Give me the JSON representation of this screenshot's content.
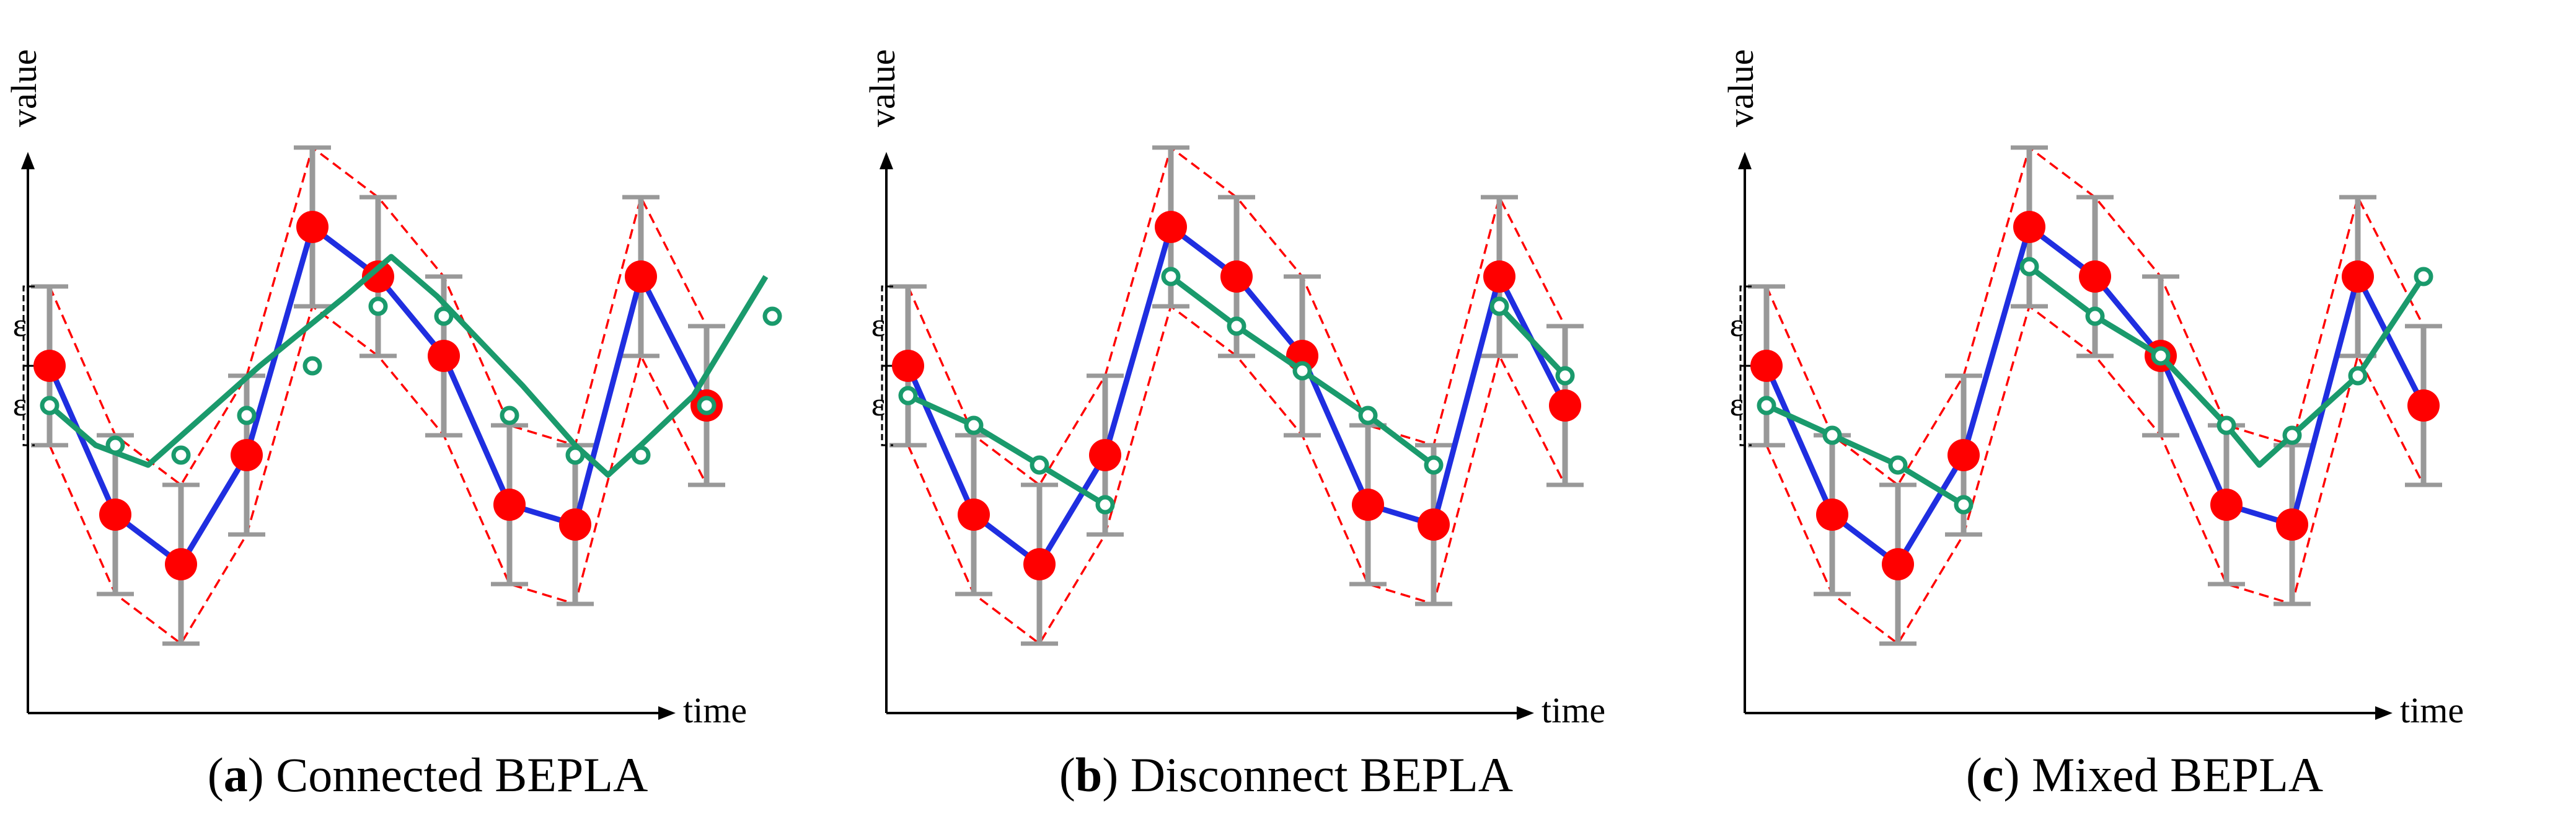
{
  "chart_data": [
    {
      "type": "line",
      "label": "a",
      "title": "Connected BEPLA",
      "xlabel": "time",
      "ylabel": "value",
      "epsilon_label": "ε",
      "epsilon": 1.6,
      "ylim": [
        0,
        13
      ],
      "x": [
        1,
        2,
        3,
        4,
        5,
        6,
        7,
        8,
        9,
        10,
        11
      ],
      "original": [
        7.0,
        4.0,
        3.0,
        5.2,
        9.8,
        8.8,
        7.2,
        4.2,
        3.8,
        8.8,
        6.2
      ],
      "approximation": {
        "segments": [
          [
            [
              1,
              6.2
            ],
            [
              1.7,
              5.4
            ],
            [
              2.5,
              5.0
            ],
            [
              4.2,
              7.0
            ],
            [
              5.5,
              8.4
            ],
            [
              6.2,
              9.2
            ],
            [
              6.9,
              8.4
            ],
            [
              8.2,
              6.6
            ],
            [
              9.0,
              5.4
            ],
            [
              9.5,
              4.8
            ],
            [
              10.0,
              5.4
            ],
            [
              10.8,
              6.4
            ],
            [
              11.9,
              8.8
            ]
          ]
        ],
        "vertices": [
          [
            1,
            6.2
          ],
          [
            2,
            5.4
          ],
          [
            3,
            5.2
          ],
          [
            4,
            6.0
          ],
          [
            5,
            7.0
          ],
          [
            6,
            8.2
          ],
          [
            7,
            8.0
          ],
          [
            8,
            6.0
          ],
          [
            9,
            5.2
          ],
          [
            10,
            5.2
          ],
          [
            11,
            6.2
          ],
          [
            12,
            8.0
          ]
        ]
      }
    },
    {
      "type": "line",
      "label": "b",
      "title": "Disconnect BEPLA",
      "xlabel": "time",
      "ylabel": "value",
      "epsilon_label": "ε",
      "epsilon": 1.6,
      "ylim": [
        0,
        13
      ],
      "x": [
        1,
        2,
        3,
        4,
        5,
        6,
        7,
        8,
        9,
        10,
        11
      ],
      "original": [
        7.0,
        4.0,
        3.0,
        5.2,
        9.8,
        8.8,
        7.2,
        4.2,
        3.8,
        8.8,
        6.2
      ],
      "approximation": {
        "segments": [
          [
            [
              1,
              6.4
            ],
            [
              2,
              5.8
            ],
            [
              3,
              5.0
            ],
            [
              4,
              4.2
            ]
          ],
          [
            [
              5,
              8.8
            ],
            [
              6,
              7.8
            ],
            [
              7,
              6.9
            ],
            [
              8,
              6.0
            ],
            [
              9,
              5.0
            ]
          ],
          [
            [
              10,
              8.2
            ],
            [
              11,
              6.8
            ]
          ]
        ],
        "vertices": [
          [
            1,
            6.4
          ],
          [
            2,
            5.8
          ],
          [
            3,
            5.0
          ],
          [
            4,
            4.2
          ],
          [
            5,
            8.8
          ],
          [
            6,
            7.8
          ],
          [
            7,
            6.9
          ],
          [
            8,
            6.0
          ],
          [
            9,
            5.0
          ],
          [
            10,
            8.2
          ],
          [
            11,
            6.8
          ]
        ]
      }
    },
    {
      "type": "line",
      "label": "c",
      "title": "Mixed BEPLA",
      "xlabel": "time",
      "ylabel": "value",
      "epsilon_label": "ε",
      "epsilon": 1.6,
      "ylim": [
        0,
        13
      ],
      "x": [
        1,
        2,
        3,
        4,
        5,
        6,
        7,
        8,
        9,
        10,
        11
      ],
      "original": [
        7.0,
        4.0,
        3.0,
        5.2,
        9.8,
        8.8,
        7.2,
        4.2,
        3.8,
        8.8,
        6.2
      ],
      "approximation": {
        "segments": [
          [
            [
              1,
              6.2
            ],
            [
              2,
              5.6
            ],
            [
              3,
              5.0
            ],
            [
              4,
              4.2
            ]
          ],
          [
            [
              5,
              9.0
            ],
            [
              6,
              8.0
            ],
            [
              7,
              7.2
            ],
            [
              8,
              5.8
            ],
            [
              8.5,
              5.0
            ],
            [
              9,
              5.6
            ],
            [
              10,
              6.8
            ],
            [
              11,
              8.8
            ]
          ]
        ],
        "vertices": [
          [
            1,
            6.2
          ],
          [
            2,
            5.6
          ],
          [
            3,
            5.0
          ],
          [
            4,
            4.2
          ],
          [
            5,
            9.0
          ],
          [
            6,
            8.0
          ],
          [
            7,
            7.2
          ],
          [
            8,
            5.8
          ],
          [
            9,
            5.6
          ],
          [
            10,
            6.8
          ],
          [
            11,
            8.8
          ]
        ]
      }
    }
  ],
  "colors": {
    "original": "#1f2ee0",
    "points": "#ff0000",
    "approximation": "#1a9a6c",
    "errorbar": "#999999",
    "bound": "#ff0000",
    "axis": "#000000"
  }
}
